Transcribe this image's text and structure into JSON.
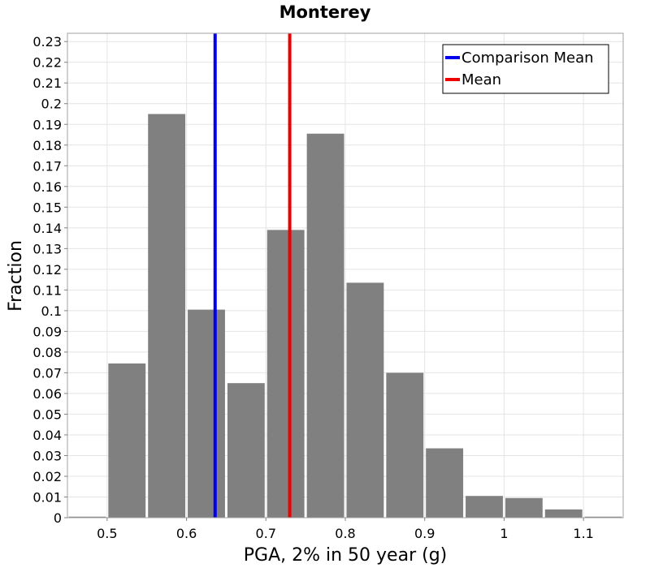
{
  "chart_data": {
    "type": "bar",
    "title": "Monterey",
    "xlabel": "PGA, 2% in 50 year (g)",
    "ylabel": "Fraction",
    "xlim": [
      0.45,
      1.15
    ],
    "ylim": [
      0,
      0.234
    ],
    "bin_width": 0.05,
    "x": [
      0.475,
      0.525,
      0.575,
      0.625,
      0.675,
      0.725,
      0.775,
      0.825,
      0.875,
      0.925,
      0.975,
      1.025,
      1.075,
      1.125
    ],
    "values": [
      0.0005,
      0.0745,
      0.195,
      0.1005,
      0.065,
      0.139,
      0.1855,
      0.1135,
      0.07,
      0.0335,
      0.0105,
      0.0095,
      0.004,
      0.0005
    ],
    "x_ticks": [
      {
        "value": 0.5,
        "label": "0.5"
      },
      {
        "value": 0.6,
        "label": "0.6"
      },
      {
        "value": 0.7,
        "label": "0.7"
      },
      {
        "value": 0.8,
        "label": "0.8"
      },
      {
        "value": 0.9,
        "label": "0.9"
      },
      {
        "value": 1.0,
        "label": "1"
      },
      {
        "value": 1.1,
        "label": "1.1"
      }
    ],
    "y_ticks": [
      {
        "value": 0,
        "label": "0"
      },
      {
        "value": 0.01,
        "label": "0.01"
      },
      {
        "value": 0.02,
        "label": "0.02"
      },
      {
        "value": 0.03,
        "label": "0.03"
      },
      {
        "value": 0.04,
        "label": "0.04"
      },
      {
        "value": 0.05,
        "label": "0.05"
      },
      {
        "value": 0.06,
        "label": "0.06"
      },
      {
        "value": 0.07,
        "label": "0.07"
      },
      {
        "value": 0.08,
        "label": "0.08"
      },
      {
        "value": 0.09,
        "label": "0.09"
      },
      {
        "value": 0.1,
        "label": "0.1"
      },
      {
        "value": 0.11,
        "label": "0.11"
      },
      {
        "value": 0.12,
        "label": "0.12"
      },
      {
        "value": 0.13,
        "label": "0.13"
      },
      {
        "value": 0.14,
        "label": "0.14"
      },
      {
        "value": 0.15,
        "label": "0.15"
      },
      {
        "value": 0.16,
        "label": "0.16"
      },
      {
        "value": 0.17,
        "label": "0.17"
      },
      {
        "value": 0.18,
        "label": "0.18"
      },
      {
        "value": 0.19,
        "label": "0.19"
      },
      {
        "value": 0.2,
        "label": "0.2"
      },
      {
        "value": 0.21,
        "label": "0.21"
      },
      {
        "value": 0.22,
        "label": "0.22"
      },
      {
        "value": 0.23,
        "label": "0.23"
      }
    ],
    "bar_color": "#808080",
    "reference_lines": [
      {
        "name": "Comparison Mean",
        "x": 0.636,
        "color": "#0000ee"
      },
      {
        "name": "Mean",
        "x": 0.73,
        "color": "#ee0000"
      }
    ],
    "legend_position": "top-right",
    "grid": true
  }
}
